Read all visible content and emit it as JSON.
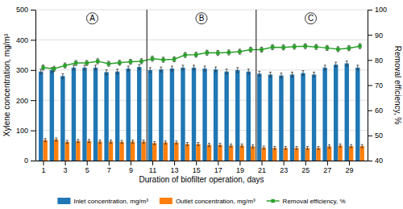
{
  "chart_data": {
    "type": "bar",
    "x_label": "Duration of biofilter operation, days",
    "y_label": "Xylene concentration, mg/m³",
    "y2_label": "Removal efficiency, %",
    "x": [
      1,
      2,
      3,
      4,
      5,
      6,
      7,
      8,
      9,
      10,
      11,
      12,
      13,
      14,
      15,
      16,
      17,
      18,
      19,
      20,
      21,
      22,
      23,
      24,
      25,
      26,
      27,
      28,
      29,
      30
    ],
    "xlim": [
      0.3,
      30.7
    ],
    "xticks": [
      1,
      3,
      5,
      7,
      9,
      11,
      13,
      15,
      17,
      19,
      21,
      23,
      25,
      27,
      29
    ],
    "ylim": [
      0,
      500
    ],
    "yticks": [
      0,
      100,
      200,
      300,
      400,
      500
    ],
    "y2lim": [
      40,
      100
    ],
    "y2ticks": [
      40,
      50,
      60,
      70,
      80,
      90,
      100
    ],
    "grid": true,
    "legend": "bottom",
    "series": [
      {
        "name": "Inlet concentration, mg/m³",
        "type": "bar",
        "values": [
          295,
          300,
          280,
          308,
          308,
          308,
          293,
          295,
          305,
          310,
          300,
          302,
          305,
          308,
          308,
          305,
          302,
          295,
          300,
          295,
          288,
          285,
          282,
          285,
          290,
          285,
          308,
          318,
          322,
          308
        ],
        "errors": [
          8,
          8,
          8,
          8,
          8,
          8,
          8,
          8,
          8,
          8,
          8,
          8,
          8,
          8,
          8,
          8,
          8,
          8,
          8,
          8,
          8,
          8,
          8,
          8,
          8,
          8,
          8,
          8,
          8,
          8
        ]
      },
      {
        "name": "Outlet concentration, mg/m³",
        "type": "bar",
        "values": [
          68,
          70,
          62,
          65,
          65,
          63,
          63,
          62,
          63,
          63,
          58,
          60,
          60,
          55,
          55,
          52,
          52,
          50,
          50,
          47,
          43,
          42,
          42,
          42,
          42,
          42,
          47,
          50,
          48,
          48
        ],
        "errors": [
          5,
          5,
          5,
          5,
          5,
          5,
          5,
          5,
          5,
          5,
          5,
          5,
          5,
          5,
          5,
          5,
          5,
          5,
          5,
          5,
          5,
          5,
          5,
          5,
          5,
          5,
          5,
          5,
          5,
          5
        ]
      },
      {
        "name": "Removal efficiency, %",
        "type": "line",
        "axis": "y2",
        "marker": "square",
        "line_style": "solid",
        "values": [
          77.0,
          76.5,
          77.8,
          78.8,
          78.8,
          79.5,
          78.5,
          78.9,
          79.3,
          79.5,
          80.5,
          80.1,
          80.3,
          82.0,
          82.1,
          82.9,
          82.8,
          83.0,
          83.3,
          84.1,
          84.1,
          85.1,
          85.0,
          85.3,
          85.5,
          85.2,
          84.8,
          84.3,
          84.7,
          85.5
        ],
        "errors": [
          1.0,
          1.0,
          1.0,
          1.0,
          1.0,
          1.0,
          1.0,
          1.0,
          1.0,
          1.0,
          1.0,
          1.0,
          1.0,
          1.0,
          1.0,
          1.0,
          1.0,
          1.0,
          1.0,
          1.0,
          1.0,
          1.0,
          1.0,
          1.0,
          1.0,
          1.0,
          1.0,
          1.0,
          1.0,
          1.0
        ]
      }
    ],
    "vlines": [
      10.5,
      20.5
    ],
    "annotations": [
      {
        "text": "A",
        "x": 5.5,
        "y": 490
      },
      {
        "text": "B",
        "x": 15.5,
        "y": 490
      },
      {
        "text": "C",
        "x": 25.5,
        "y": 490
      }
    ]
  }
}
